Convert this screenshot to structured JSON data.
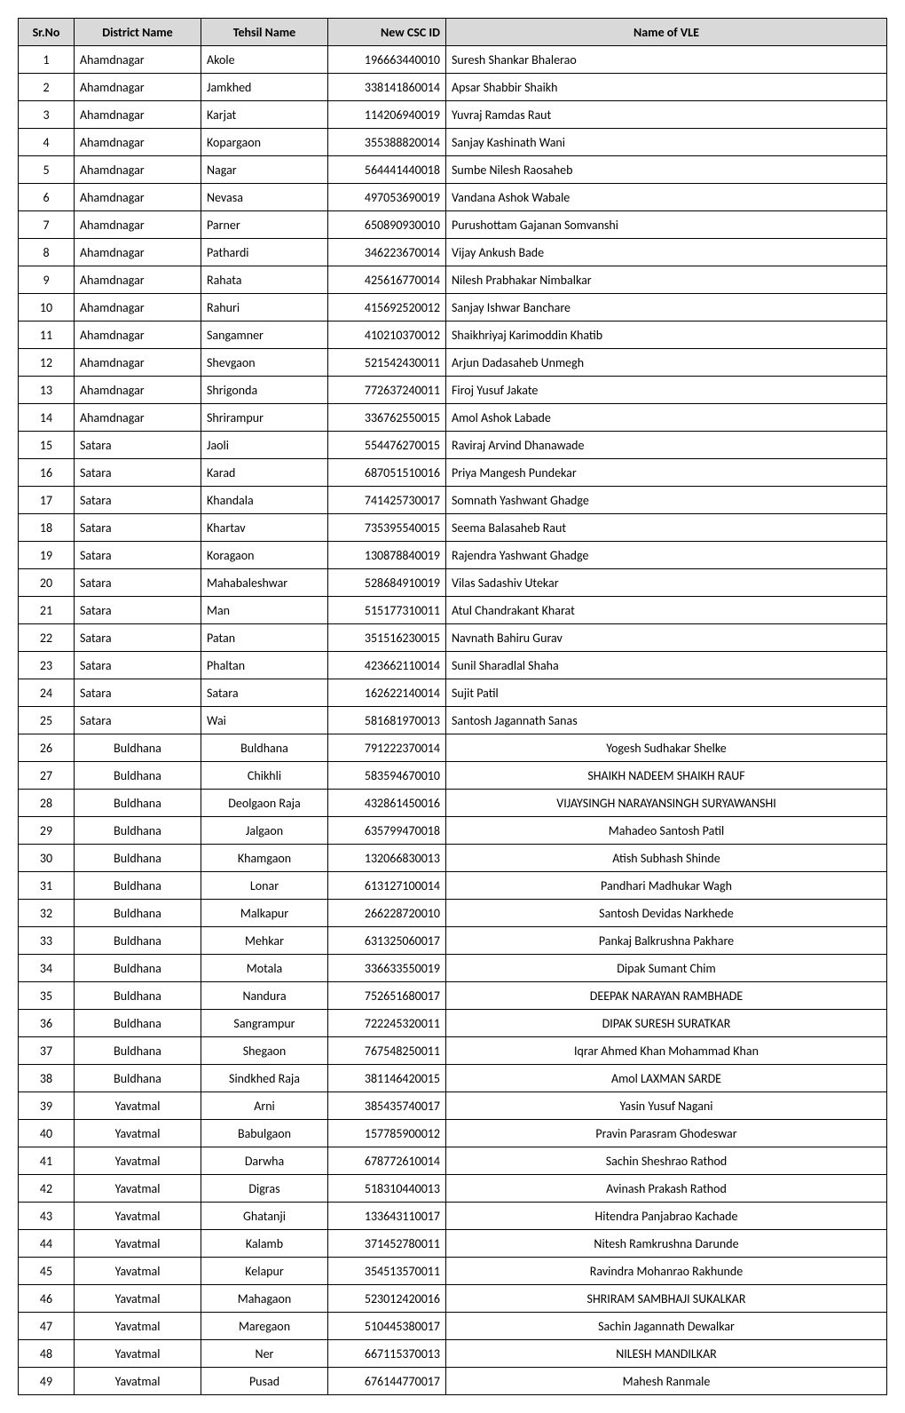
{
  "table": {
    "headers": {
      "srno": "Sr.No",
      "district": "District Name",
      "tehsil": "Tehsil Name",
      "cscid": "New CSC ID",
      "name": "Name of VLE"
    },
    "header_bg_color": "#d9d9d9",
    "border_color": "#000000",
    "font_family": "Calibri",
    "font_size": 14,
    "rows": [
      {
        "srno": "1",
        "district": "Ahamdnagar",
        "tehsil": "Akole",
        "cscid": "196663440010",
        "name": "Suresh Shankar Bhalerao",
        "district_align": "left",
        "tehsil_align": "left",
        "name_align": "left"
      },
      {
        "srno": "2",
        "district": "Ahamdnagar",
        "tehsil": "Jamkhed",
        "cscid": "338141860014",
        "name": "Apsar Shabbir Shaikh",
        "district_align": "left",
        "tehsil_align": "left",
        "name_align": "left"
      },
      {
        "srno": "3",
        "district": "Ahamdnagar",
        "tehsil": "Karjat",
        "cscid": "114206940019",
        "name": "Yuvraj Ramdas Raut",
        "district_align": "left",
        "tehsil_align": "left",
        "name_align": "left"
      },
      {
        "srno": "4",
        "district": "Ahamdnagar",
        "tehsil": "Kopargaon",
        "cscid": "355388820014",
        "name": "Sanjay Kashinath Wani",
        "district_align": "left",
        "tehsil_align": "left",
        "name_align": "left"
      },
      {
        "srno": "5",
        "district": "Ahamdnagar",
        "tehsil": "Nagar",
        "cscid": "564441440018",
        "name": "Sumbe Nilesh Raosaheb",
        "district_align": "left",
        "tehsil_align": "left",
        "name_align": "left"
      },
      {
        "srno": "6",
        "district": "Ahamdnagar",
        "tehsil": "Nevasa",
        "cscid": "497053690019",
        "name": "Vandana Ashok Wabale",
        "district_align": "left",
        "tehsil_align": "left",
        "name_align": "left"
      },
      {
        "srno": "7",
        "district": "Ahamdnagar",
        "tehsil": "Parner",
        "cscid": "650890930010",
        "name": "Purushottam Gajanan Somvanshi",
        "district_align": "left",
        "tehsil_align": "left",
        "name_align": "left"
      },
      {
        "srno": "8",
        "district": "Ahamdnagar",
        "tehsil": "Pathardi",
        "cscid": "346223670014",
        "name": "Vijay Ankush Bade",
        "district_align": "left",
        "tehsil_align": "left",
        "name_align": "left"
      },
      {
        "srno": "9",
        "district": "Ahamdnagar",
        "tehsil": "Rahata",
        "cscid": "425616770014",
        "name": "Nilesh Prabhakar Nimbalkar",
        "district_align": "left",
        "tehsil_align": "left",
        "name_align": "left"
      },
      {
        "srno": "10",
        "district": "Ahamdnagar",
        "tehsil": "Rahuri",
        "cscid": "415692520012",
        "name": "Sanjay Ishwar Banchare",
        "district_align": "left",
        "tehsil_align": "left",
        "name_align": "left"
      },
      {
        "srno": "11",
        "district": "Ahamdnagar",
        "tehsil": "Sangamner",
        "cscid": "410210370012",
        "name": "Shaikhriyaj Karimoddin Khatib",
        "district_align": "left",
        "tehsil_align": "left",
        "name_align": "left"
      },
      {
        "srno": "12",
        "district": "Ahamdnagar",
        "tehsil": "Shevgaon",
        "cscid": "521542430011",
        "name": "Arjun Dadasaheb Unmegh",
        "district_align": "left",
        "tehsil_align": "left",
        "name_align": "left"
      },
      {
        "srno": "13",
        "district": "Ahamdnagar",
        "tehsil": "Shrigonda",
        "cscid": "772637240011",
        "name": "Firoj Yusuf Jakate",
        "district_align": "left",
        "tehsil_align": "left",
        "name_align": "left"
      },
      {
        "srno": "14",
        "district": "Ahamdnagar",
        "tehsil": "Shrirampur",
        "cscid": "336762550015",
        "name": "Amol Ashok Labade",
        "district_align": "left",
        "tehsil_align": "left",
        "name_align": "left"
      },
      {
        "srno": "15",
        "district": "Satara",
        "tehsil": "Jaoli",
        "cscid": "554476270015",
        "name": "Raviraj Arvind Dhanawade",
        "district_align": "left",
        "tehsil_align": "left",
        "name_align": "left"
      },
      {
        "srno": "16",
        "district": "Satara",
        "tehsil": "Karad",
        "cscid": "687051510016",
        "name": "Priya Mangesh Pundekar",
        "district_align": "left",
        "tehsil_align": "left",
        "name_align": "left"
      },
      {
        "srno": "17",
        "district": "Satara",
        "tehsil": "Khandala",
        "cscid": "741425730017",
        "name": "Somnath Yashwant Ghadge",
        "district_align": "left",
        "tehsil_align": "left",
        "name_align": "left"
      },
      {
        "srno": "18",
        "district": "Satara",
        "tehsil": "Khartav",
        "cscid": "735395540015",
        "name": "Seema Balasaheb Raut",
        "district_align": "left",
        "tehsil_align": "left",
        "name_align": "left"
      },
      {
        "srno": "19",
        "district": "Satara",
        "tehsil": "Koragaon",
        "cscid": "130878840019",
        "name": "Rajendra Yashwant Ghadge",
        "district_align": "left",
        "tehsil_align": "left",
        "name_align": "left"
      },
      {
        "srno": "20",
        "district": "Satara",
        "tehsil": "Mahabaleshwar",
        "cscid": "528684910019",
        "name": "Vilas Sadashiv Utekar",
        "district_align": "left",
        "tehsil_align": "left",
        "name_align": "left"
      },
      {
        "srno": "21",
        "district": "Satara",
        "tehsil": "Man",
        "cscid": "515177310011",
        "name": "Atul Chandrakant Kharat",
        "district_align": "left",
        "tehsil_align": "left",
        "name_align": "left"
      },
      {
        "srno": "22",
        "district": "Satara",
        "tehsil": "Patan",
        "cscid": "351516230015",
        "name": "Navnath Bahiru Gurav",
        "district_align": "left",
        "tehsil_align": "left",
        "name_align": "left"
      },
      {
        "srno": "23",
        "district": "Satara",
        "tehsil": "Phaltan",
        "cscid": "423662110014",
        "name": "Sunil Sharadlal Shaha",
        "district_align": "left",
        "tehsil_align": "left",
        "name_align": "left"
      },
      {
        "srno": "24",
        "district": "Satara",
        "tehsil": "Satara",
        "cscid": "162622140014",
        "name": "Sujit Patil",
        "district_align": "left",
        "tehsil_align": "left",
        "name_align": "left"
      },
      {
        "srno": "25",
        "district": "Satara",
        "tehsil": "Wai",
        "cscid": "581681970013",
        "name": "Santosh Jagannath Sanas",
        "district_align": "left",
        "tehsil_align": "left",
        "name_align": "left"
      },
      {
        "srno": "26",
        "district": "Buldhana",
        "tehsil": "Buldhana",
        "cscid": "791222370014",
        "name": "Yogesh Sudhakar Shelke",
        "district_align": "center",
        "tehsil_align": "center",
        "name_align": "center"
      },
      {
        "srno": "27",
        "district": "Buldhana",
        "tehsil": "Chikhli",
        "cscid": "583594670010",
        "name": "SHAIKH NADEEM SHAIKH RAUF",
        "district_align": "center",
        "tehsil_align": "center",
        "name_align": "center"
      },
      {
        "srno": "28",
        "district": "Buldhana",
        "tehsil": "Deolgaon Raja",
        "cscid": "432861450016",
        "name": "VIJAYSINGH NARAYANSINGH SURYAWANSHI",
        "district_align": "center",
        "tehsil_align": "center",
        "name_align": "center"
      },
      {
        "srno": "29",
        "district": "Buldhana",
        "tehsil": "Jalgaon",
        "cscid": "635799470018",
        "name": "Mahadeo Santosh Patil",
        "district_align": "center",
        "tehsil_align": "center",
        "name_align": "center"
      },
      {
        "srno": "30",
        "district": "Buldhana",
        "tehsil": "Khamgaon",
        "cscid": "132066830013",
        "name": "Atish Subhash Shinde",
        "district_align": "center",
        "tehsil_align": "center",
        "name_align": "center"
      },
      {
        "srno": "31",
        "district": "Buldhana",
        "tehsil": "Lonar",
        "cscid": "613127100014",
        "name": "Pandhari Madhukar Wagh",
        "district_align": "center",
        "tehsil_align": "center",
        "name_align": "center"
      },
      {
        "srno": "32",
        "district": "Buldhana",
        "tehsil": "Malkapur",
        "cscid": "266228720010",
        "name": "Santosh Devidas Narkhede",
        "district_align": "center",
        "tehsil_align": "center",
        "name_align": "center"
      },
      {
        "srno": "33",
        "district": "Buldhana",
        "tehsil": "Mehkar",
        "cscid": "631325060017",
        "name": "Pankaj Balkrushna Pakhare",
        "district_align": "center",
        "tehsil_align": "center",
        "name_align": "center"
      },
      {
        "srno": "34",
        "district": "Buldhana",
        "tehsil": "Motala",
        "cscid": "336633550019",
        "name": "Dipak Sumant Chim",
        "district_align": "center",
        "tehsil_align": "center",
        "name_align": "center"
      },
      {
        "srno": "35",
        "district": "Buldhana",
        "tehsil": "Nandura",
        "cscid": "752651680017",
        "name": "DEEPAK NARAYAN RAMBHADE",
        "district_align": "center",
        "tehsil_align": "center",
        "name_align": "center"
      },
      {
        "srno": "36",
        "district": "Buldhana",
        "tehsil": "Sangrampur",
        "cscid": "722245320011",
        "name": "DIPAK SURESH SURATKAR",
        "district_align": "center",
        "tehsil_align": "center",
        "name_align": "center"
      },
      {
        "srno": "37",
        "district": "Buldhana",
        "tehsil": "Shegaon",
        "cscid": "767548250011",
        "name": "Iqrar Ahmed Khan Mohammad Khan",
        "district_align": "center",
        "tehsil_align": "center",
        "name_align": "center"
      },
      {
        "srno": "38",
        "district": "Buldhana",
        "tehsil": "Sindkhed Raja",
        "cscid": "381146420015",
        "name": "Amol LAXMAN SARDE",
        "district_align": "center",
        "tehsil_align": "center",
        "name_align": "center"
      },
      {
        "srno": "39",
        "district": "Yavatmal",
        "tehsil": "Arni",
        "cscid": "385435740017",
        "name": "Yasin Yusuf Nagani",
        "district_align": "center",
        "tehsil_align": "center",
        "name_align": "center"
      },
      {
        "srno": "40",
        "district": "Yavatmal",
        "tehsil": "Babulgaon",
        "cscid": "157785900012",
        "name": "Pravin Parasram Ghodeswar",
        "district_align": "center",
        "tehsil_align": "center",
        "name_align": "center"
      },
      {
        "srno": "41",
        "district": "Yavatmal",
        "tehsil": "Darwha",
        "cscid": "678772610014",
        "name": "Sachin Sheshrao Rathod",
        "district_align": "center",
        "tehsil_align": "center",
        "name_align": "center"
      },
      {
        "srno": "42",
        "district": "Yavatmal",
        "tehsil": "Digras",
        "cscid": "518310440013",
        "name": "Avinash Prakash Rathod",
        "district_align": "center",
        "tehsil_align": "center",
        "name_align": "center"
      },
      {
        "srno": "43",
        "district": "Yavatmal",
        "tehsil": "Ghatanji",
        "cscid": "133643110017",
        "name": "Hitendra Panjabrao Kachade",
        "district_align": "center",
        "tehsil_align": "center",
        "name_align": "center"
      },
      {
        "srno": "44",
        "district": "Yavatmal",
        "tehsil": "Kalamb",
        "cscid": "371452780011",
        "name": "Nitesh Ramkrushna Darunde",
        "district_align": "center",
        "tehsil_align": "center",
        "name_align": "center"
      },
      {
        "srno": "45",
        "district": "Yavatmal",
        "tehsil": "Kelapur",
        "cscid": "354513570011",
        "name": "Ravindra Mohanrao Rakhunde",
        "district_align": "center",
        "tehsil_align": "center",
        "name_align": "center"
      },
      {
        "srno": "46",
        "district": "Yavatmal",
        "tehsil": "Mahagaon",
        "cscid": "523012420016",
        "name": "SHRIRAM SAMBHAJI SUKALKAR",
        "district_align": "center",
        "tehsil_align": "center",
        "name_align": "center"
      },
      {
        "srno": "47",
        "district": "Yavatmal",
        "tehsil": "Maregaon",
        "cscid": "510445380017",
        "name": "Sachin Jagannath Dewalkar",
        "district_align": "center",
        "tehsil_align": "center",
        "name_align": "center"
      },
      {
        "srno": "48",
        "district": "Yavatmal",
        "tehsil": "Ner",
        "cscid": "667115370013",
        "name": "NILESH MANDILKAR",
        "district_align": "center",
        "tehsil_align": "center",
        "name_align": "center"
      },
      {
        "srno": "49",
        "district": "Yavatmal",
        "tehsil": "Pusad",
        "cscid": "676144770017",
        "name": "Mahesh Ranmale",
        "district_align": "center",
        "tehsil_align": "center",
        "name_align": "center"
      }
    ]
  }
}
